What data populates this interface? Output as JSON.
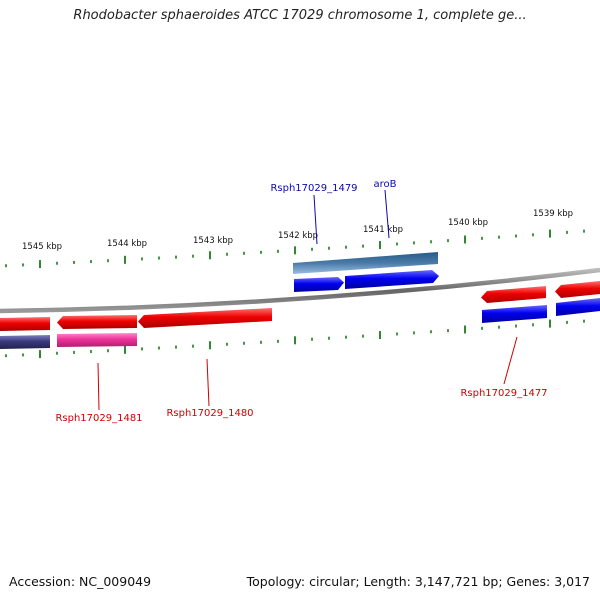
{
  "title": "Rhodobacter sphaeroides ATCC 17029 chromosome 1, complete ge...",
  "footer": {
    "accession": "Accession: NC_009049",
    "summary": "Topology: circular; Length: 3,147,721 bp; Genes: 3,017"
  },
  "ruler_labels": [
    "1545 kbp",
    "1544 kbp",
    "1543 kbp",
    "1542 kbp",
    "1541 kbp",
    "1540 kbp",
    "1539 kbp"
  ],
  "gene_labels": [
    {
      "text": "Rsph17029_1479",
      "strand": "forward"
    },
    {
      "text": "aroB",
      "strand": "forward"
    },
    {
      "text": "Rsph17029_1481",
      "strand": "reverse"
    },
    {
      "text": "Rsph17029_1480",
      "strand": "reverse"
    },
    {
      "text": "Rsph17029_1477",
      "strand": "reverse"
    }
  ],
  "colors": {
    "forward_label": "#0a0aa8",
    "reverse_label": "#d00000",
    "forward_gene": "#0000ee",
    "reverse_gene": "#ee0000",
    "pseudo_gene": "#ee3399",
    "feature_purple": "#3a3a80",
    "feature_steel": "#4a7aa8",
    "ticks": "#1a7a1a",
    "backbone": "#777777"
  }
}
